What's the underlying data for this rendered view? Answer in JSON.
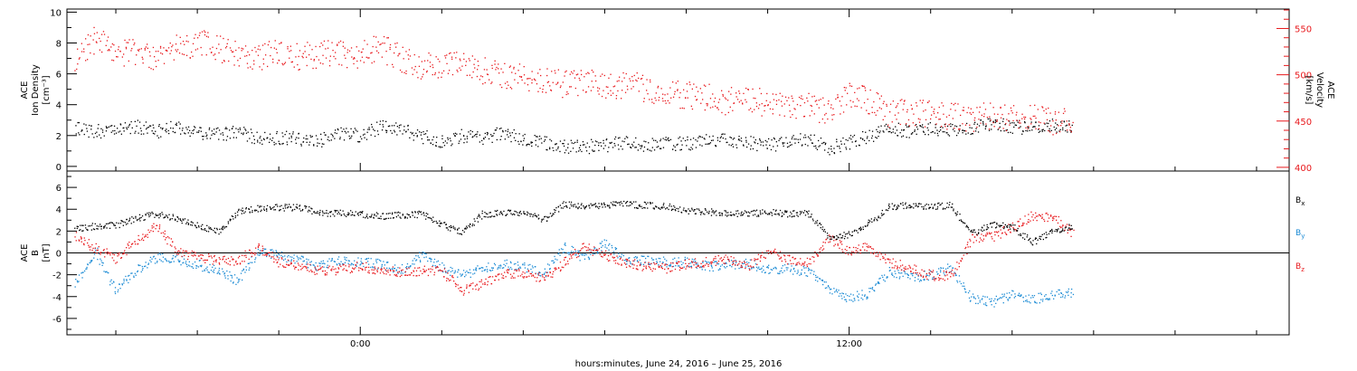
{
  "colors": {
    "black": "#000000",
    "red": "#e8171b",
    "blue": "#1a8ad4"
  },
  "xaxis": {
    "label": "hours:minutes, June 24, 2016 – June 25, 2016",
    "range_hours": [
      -7.2,
      22.8
    ],
    "labeled_ticks": [
      {
        "h": 0,
        "text": "0:00"
      },
      {
        "h": 12,
        "text": "12:00"
      }
    ],
    "minor_tick_step_hours": 2
  },
  "chart_data": [
    {
      "type": "scatter",
      "panel": "top",
      "left_axis": {
        "title": [
          "ACE",
          "Ion Density"
        ],
        "unit": "[cm⁻³]",
        "ylim": [
          -0.3,
          10.2
        ],
        "ticks": [
          "0",
          "2",
          "4",
          "6",
          "8",
          "10"
        ]
      },
      "right_axis": {
        "title": [
          "ACE",
          "Velocity"
        ],
        "unit": "[km/s]",
        "ylim": [
          396,
          571
        ],
        "ticks": [
          "400",
          "450",
          "500",
          "550"
        ]
      },
      "series": [
        {
          "color": "black",
          "axis": "left",
          "points": [
            [
              -7.0,
              2.5
            ],
            [
              -6.5,
              2.3
            ],
            [
              -6.0,
              2.3
            ],
            [
              -5.5,
              2.6
            ],
            [
              -5.0,
              2.3
            ],
            [
              -4.5,
              2.6
            ],
            [
              -4.0,
              2.2
            ],
            [
              -3.5,
              2.1
            ],
            [
              -3.0,
              2.3
            ],
            [
              -2.5,
              1.8
            ],
            [
              -2.0,
              1.9
            ],
            [
              -1.5,
              1.8
            ],
            [
              -1.0,
              1.7
            ],
            [
              -0.5,
              2.2
            ],
            [
              0.0,
              2.0
            ],
            [
              0.5,
              2.6
            ],
            [
              1.0,
              2.4
            ],
            [
              1.5,
              2.0
            ],
            [
              2.0,
              1.6
            ],
            [
              2.5,
              2.0
            ],
            [
              3.0,
              1.9
            ],
            [
              3.5,
              2.2
            ],
            [
              4.0,
              1.8
            ],
            [
              4.5,
              1.6
            ],
            [
              5.0,
              1.3
            ],
            [
              5.5,
              1.3
            ],
            [
              6.0,
              1.4
            ],
            [
              6.5,
              1.6
            ],
            [
              7.0,
              1.4
            ],
            [
              7.5,
              1.5
            ],
            [
              8.0,
              1.5
            ],
            [
              8.5,
              1.7
            ],
            [
              9.0,
              1.7
            ],
            [
              9.5,
              1.6
            ],
            [
              10.0,
              1.4
            ],
            [
              10.5,
              1.6
            ],
            [
              11.0,
              1.8
            ],
            [
              11.5,
              1.2
            ],
            [
              12.0,
              1.6
            ],
            [
              12.5,
              2.0
            ],
            [
              13.0,
              2.5
            ],
            [
              13.5,
              2.3
            ],
            [
              14.0,
              2.5
            ],
            [
              14.5,
              2.4
            ],
            [
              15.0,
              2.4
            ],
            [
              15.5,
              2.9
            ],
            [
              16.0,
              2.6
            ],
            [
              16.5,
              2.5
            ],
            [
              17.0,
              2.7
            ],
            [
              17.5,
              2.5
            ]
          ]
        },
        {
          "color": "red",
          "axis": "right",
          "points": [
            [
              -7.0,
              512
            ],
            [
              -6.5,
              540
            ],
            [
              -6.0,
              522
            ],
            [
              -5.5,
              525
            ],
            [
              -5.0,
              520
            ],
            [
              -4.5,
              530
            ],
            [
              -4.0,
              535
            ],
            [
              -3.5,
              530
            ],
            [
              -3.0,
              522
            ],
            [
              -2.5,
              520
            ],
            [
              -2.0,
              526
            ],
            [
              -1.5,
              520
            ],
            [
              -1.0,
              522
            ],
            [
              -0.5,
              524
            ],
            [
              0.0,
              522
            ],
            [
              0.5,
              530
            ],
            [
              1.0,
              518
            ],
            [
              1.5,
              510
            ],
            [
              2.0,
              508
            ],
            [
              2.5,
              512
            ],
            [
              3.0,
              505
            ],
            [
              3.5,
              500
            ],
            [
              4.0,
              498
            ],
            [
              4.5,
              494
            ],
            [
              5.0,
              490
            ],
            [
              5.5,
              492
            ],
            [
              6.0,
              488
            ],
            [
              6.5,
              490
            ],
            [
              7.0,
              486
            ],
            [
              7.5,
              480
            ],
            [
              8.0,
              478
            ],
            [
              8.5,
              476
            ],
            [
              9.0,
              472
            ],
            [
              9.5,
              474
            ],
            [
              10.0,
              470
            ],
            [
              10.5,
              466
            ],
            [
              11.0,
              466
            ],
            [
              11.5,
              462
            ],
            [
              12.0,
              480
            ],
            [
              12.5,
              472
            ],
            [
              13.0,
              458
            ],
            [
              13.5,
              460
            ],
            [
              14.0,
              458
            ],
            [
              14.5,
              456
            ],
            [
              15.0,
              454
            ],
            [
              15.5,
              456
            ],
            [
              16.0,
              452
            ],
            [
              16.5,
              456
            ],
            [
              17.0,
              450
            ],
            [
              17.5,
              454
            ]
          ]
        }
      ]
    },
    {
      "type": "scatter",
      "panel": "bottom",
      "left_axis": {
        "title": [
          "ACE",
          "B"
        ],
        "unit": "[nT]",
        "ylim": [
          -7.5,
          7.5
        ],
        "ticks": [
          "-6",
          "-4",
          "-2",
          "0",
          "2",
          "4",
          "6"
        ]
      },
      "legend": [
        {
          "text": "B",
          "sub": "x",
          "color": "black"
        },
        {
          "text": "B",
          "sub": "y",
          "color": "blue"
        },
        {
          "text": "B",
          "sub": "z",
          "color": "red"
        }
      ],
      "series": [
        {
          "name": "Bx",
          "color": "black",
          "points": [
            [
              -7.0,
              2.2
            ],
            [
              -6.5,
              2.5
            ],
            [
              -6.0,
              2.6
            ],
            [
              -5.5,
              3.2
            ],
            [
              -5.0,
              3.6
            ],
            [
              -4.5,
              3.2
            ],
            [
              -4.0,
              2.6
            ],
            [
              -3.5,
              2.0
            ],
            [
              -3.0,
              3.8
            ],
            [
              -2.5,
              4.1
            ],
            [
              -2.0,
              4.2
            ],
            [
              -1.5,
              4.2
            ],
            [
              -1.0,
              3.7
            ],
            [
              -0.5,
              3.7
            ],
            [
              0.0,
              3.6
            ],
            [
              0.5,
              3.4
            ],
            [
              1.0,
              3.5
            ],
            [
              1.5,
              3.6
            ],
            [
              2.0,
              2.6
            ],
            [
              2.5,
              2.0
            ],
            [
              3.0,
              3.6
            ],
            [
              3.5,
              3.7
            ],
            [
              4.0,
              3.7
            ],
            [
              4.5,
              3.1
            ],
            [
              5.0,
              4.5
            ],
            [
              5.5,
              4.3
            ],
            [
              6.0,
              4.4
            ],
            [
              6.5,
              4.5
            ],
            [
              7.0,
              4.4
            ],
            [
              7.5,
              4.3
            ],
            [
              8.0,
              3.9
            ],
            [
              8.5,
              3.8
            ],
            [
              9.0,
              3.7
            ],
            [
              9.5,
              3.6
            ],
            [
              10.0,
              3.8
            ],
            [
              10.5,
              3.6
            ],
            [
              11.0,
              3.7
            ],
            [
              11.5,
              1.5
            ],
            [
              12.0,
              1.7
            ],
            [
              12.5,
              2.8
            ],
            [
              13.0,
              4.3
            ],
            [
              13.5,
              4.4
            ],
            [
              14.0,
              4.3
            ],
            [
              14.5,
              4.4
            ],
            [
              15.0,
              1.8
            ],
            [
              15.5,
              2.6
            ],
            [
              16.0,
              2.5
            ],
            [
              16.5,
              1.0
            ],
            [
              17.0,
              2.0
            ],
            [
              17.5,
              2.5
            ]
          ]
        },
        {
          "name": "By",
          "color": "blue",
          "points": [
            [
              -7.0,
              -2.8
            ],
            [
              -6.5,
              0.2
            ],
            [
              -6.0,
              -3.5
            ],
            [
              -5.5,
              -1.5
            ],
            [
              -5.0,
              -0.4
            ],
            [
              -4.5,
              -0.6
            ],
            [
              -4.0,
              -1.0
            ],
            [
              -3.5,
              -1.7
            ],
            [
              -3.0,
              -2.5
            ],
            [
              -2.5,
              0.2
            ],
            [
              -2.0,
              -0.2
            ],
            [
              -1.5,
              -0.6
            ],
            [
              -1.0,
              -1.2
            ],
            [
              -0.5,
              -0.6
            ],
            [
              0.0,
              -0.8
            ],
            [
              0.5,
              -1.0
            ],
            [
              1.0,
              -1.5
            ],
            [
              1.5,
              -0.2
            ],
            [
              2.0,
              -1.3
            ],
            [
              2.5,
              -2.0
            ],
            [
              3.0,
              -1.3
            ],
            [
              3.5,
              -1.0
            ],
            [
              4.0,
              -1.2
            ],
            [
              4.5,
              -1.8
            ],
            [
              5.0,
              0.5
            ],
            [
              5.5,
              -0.4
            ],
            [
              6.0,
              0.9
            ],
            [
              6.5,
              -0.6
            ],
            [
              7.0,
              -0.6
            ],
            [
              7.5,
              -0.8
            ],
            [
              8.0,
              -0.8
            ],
            [
              8.5,
              -1.2
            ],
            [
              9.0,
              -1.0
            ],
            [
              9.5,
              -0.9
            ],
            [
              10.0,
              -1.5
            ],
            [
              10.5,
              -1.4
            ],
            [
              11.0,
              -1.7
            ],
            [
              11.5,
              -3.3
            ],
            [
              12.0,
              -4.1
            ],
            [
              12.5,
              -3.6
            ],
            [
              13.0,
              -1.6
            ],
            [
              13.5,
              -2.2
            ],
            [
              14.0,
              -2.0
            ],
            [
              14.5,
              -1.3
            ],
            [
              15.0,
              -4.1
            ],
            [
              15.5,
              -4.5
            ],
            [
              16.0,
              -3.8
            ],
            [
              16.5,
              -4.2
            ],
            [
              17.0,
              -3.8
            ],
            [
              17.5,
              -3.6
            ]
          ]
        },
        {
          "name": "Bz",
          "color": "red",
          "points": [
            [
              -7.0,
              1.6
            ],
            [
              -6.5,
              0.5
            ],
            [
              -6.0,
              -0.5
            ],
            [
              -5.5,
              1.2
            ],
            [
              -5.0,
              2.5
            ],
            [
              -4.5,
              0.2
            ],
            [
              -4.0,
              -0.4
            ],
            [
              -3.5,
              -0.6
            ],
            [
              -3.0,
              -0.7
            ],
            [
              -2.5,
              0.6
            ],
            [
              -2.0,
              -0.8
            ],
            [
              -1.5,
              -1.2
            ],
            [
              -1.0,
              -1.6
            ],
            [
              -0.5,
              -1.5
            ],
            [
              0.0,
              -1.2
            ],
            [
              0.5,
              -1.5
            ],
            [
              1.0,
              -1.8
            ],
            [
              1.5,
              -1.6
            ],
            [
              2.0,
              -1.6
            ],
            [
              2.5,
              -3.5
            ],
            [
              3.0,
              -2.8
            ],
            [
              3.5,
              -1.9
            ],
            [
              4.0,
              -1.8
            ],
            [
              4.5,
              -2.3
            ],
            [
              5.0,
              -0.8
            ],
            [
              5.5,
              0.6
            ],
            [
              6.0,
              -0.2
            ],
            [
              6.5,
              -0.8
            ],
            [
              7.0,
              -1.2
            ],
            [
              7.5,
              -1.4
            ],
            [
              8.0,
              -1.0
            ],
            [
              8.5,
              -0.8
            ],
            [
              9.0,
              -0.5
            ],
            [
              9.5,
              -1.2
            ],
            [
              10.0,
              0.2
            ],
            [
              10.5,
              -0.6
            ],
            [
              11.0,
              -0.8
            ],
            [
              11.5,
              1.4
            ],
            [
              12.0,
              0.2
            ],
            [
              12.5,
              0.6
            ],
            [
              13.0,
              -0.8
            ],
            [
              13.5,
              -1.4
            ],
            [
              14.0,
              -2.0
            ],
            [
              14.5,
              -2.1
            ],
            [
              15.0,
              1.4
            ],
            [
              15.5,
              1.5
            ],
            [
              16.0,
              2.4
            ],
            [
              16.5,
              3.4
            ],
            [
              17.0,
              3.3
            ],
            [
              17.5,
              1.8
            ]
          ]
        }
      ]
    }
  ]
}
